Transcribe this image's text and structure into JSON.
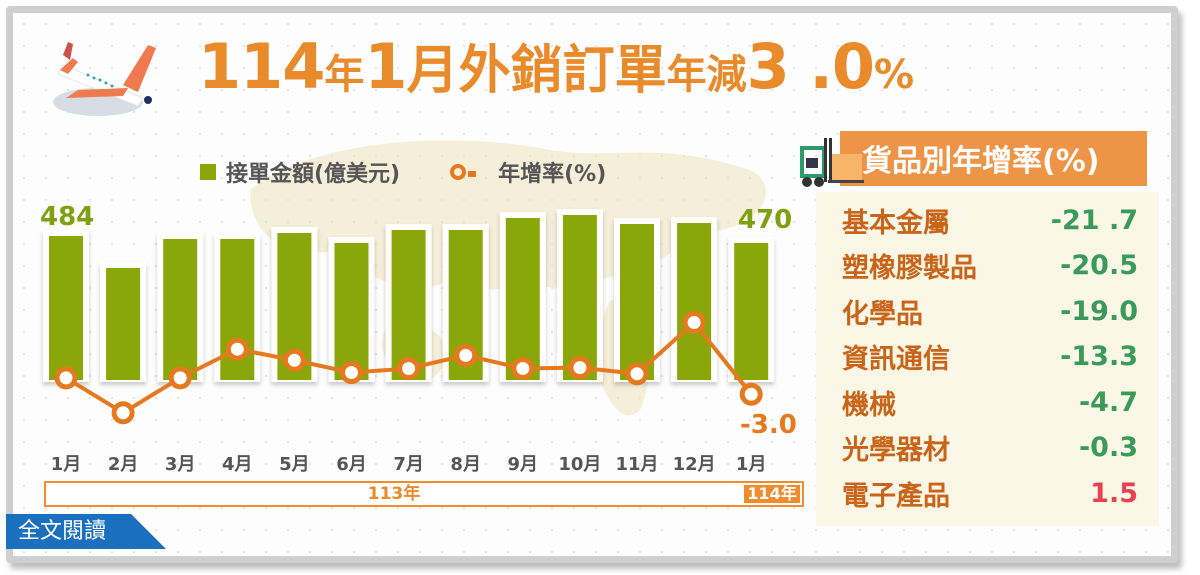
{
  "title": {
    "part1": "114",
    "part2": "年",
    "part3": "1",
    "part4": "月",
    "part5": "外銷訂單",
    "part6": "年減",
    "part7": "3 .0",
    "part8": "%"
  },
  "legend": {
    "bars": "接單金額(億美元)",
    "line": "年增率(%)"
  },
  "labels": {
    "first_bar_value": "484",
    "last_bar_value": "470",
    "last_rate_value": "-3.0"
  },
  "years": {
    "y113": "113年",
    "y114": "114年"
  },
  "read_all": "全文閱讀",
  "panel": {
    "title": "貨品別年增率(%)",
    "rows": [
      {
        "name": "基本金屬",
        "value": "-21 .7",
        "color": "#3a9a5a"
      },
      {
        "name": "塑橡膠製品",
        "value": "-20.5",
        "color": "#3a9a5a"
      },
      {
        "name": "化學品",
        "value": "-19.0",
        "color": "#3a9a5a"
      },
      {
        "name": "資訊通信",
        "value": "-13.3",
        "color": "#3a9a5a"
      },
      {
        "name": "機械",
        "value": "-4.7",
        "color": "#3a9a5a"
      },
      {
        "name": "光學器材",
        "value": "-0.3",
        "color": "#3a9a5a"
      },
      {
        "name": "電子產品",
        "value": "1.5",
        "color": "#e8414f"
      }
    ]
  },
  "colors": {
    "title": "#e98a2b",
    "bar": "#8aa60a",
    "line": "#e5791d",
    "negative": "#3a9a5a",
    "positive": "#e8414f",
    "panel_header": "#ee9447",
    "read_all_bg": "#1b6fbf"
  },
  "chart_data": {
    "type": "bar",
    "title": "114年1月外銷訂單年減3.0%",
    "categories": [
      "1月",
      "2月",
      "3月",
      "4月",
      "5月",
      "6月",
      "7月",
      "8月",
      "9月",
      "10月",
      "11月",
      "12月",
      "1月"
    ],
    "category_groups": [
      {
        "label": "113年",
        "from": 0,
        "to": 11
      },
      {
        "label": "114年",
        "from": 12,
        "to": 12
      }
    ],
    "series": [
      {
        "name": "接單金額(億美元)",
        "type": "bar",
        "values": [
          484,
          420,
          478,
          478,
          490,
          470,
          496,
          496,
          520,
          526,
          508,
          510,
          470
        ]
      },
      {
        "name": "年增率(%)",
        "type": "line",
        "values": [
          1.0,
          -7.5,
          1.0,
          8.0,
          5.3,
          2.3,
          3.3,
          6.5,
          3.3,
          3.5,
          2.0,
          14.5,
          -3.0
        ]
      }
    ],
    "data_labels": {
      "bar_first": 484,
      "bar_last": 470,
      "line_last": -3.0
    },
    "xlabel": "",
    "ylabel": "",
    "grid": false,
    "legend_position": "top"
  }
}
